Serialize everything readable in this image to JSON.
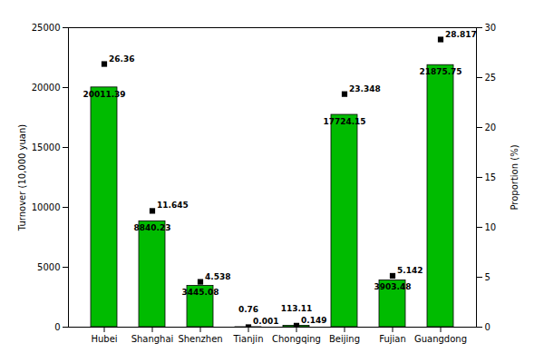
{
  "chart_data": {
    "type": "bar",
    "categories": [
      "Hubei",
      "Shanghai",
      "Shenzhen",
      "Tianjin",
      "Chongqing",
      "Beijing",
      "Fujian",
      "Guangdong"
    ],
    "ylabel": "Turnover (10,000 yuan)",
    "y2label": "Proportion (%)",
    "ylim": [
      0,
      25000
    ],
    "yticks": [
      0,
      5000,
      10000,
      15000,
      20000,
      25000
    ],
    "y2lim": [
      0,
      30
    ],
    "y2ticks": [
      0,
      5,
      10,
      15,
      20,
      25,
      30
    ],
    "grid": false,
    "data_labels": true,
    "series": [
      {
        "type": "bar",
        "color": "#00BB00",
        "values": [
          20011.39,
          8840.23,
          3445.08,
          0.76,
          113.11,
          17724.15,
          3903.48,
          21875.75
        ]
      },
      {
        "type": "scatter",
        "axis": "y2",
        "marker": "square",
        "color": "#000000",
        "values": [
          26.36,
          11.645,
          4.538,
          0.001,
          0.149,
          23.348,
          5.142,
          28.817
        ]
      }
    ]
  }
}
